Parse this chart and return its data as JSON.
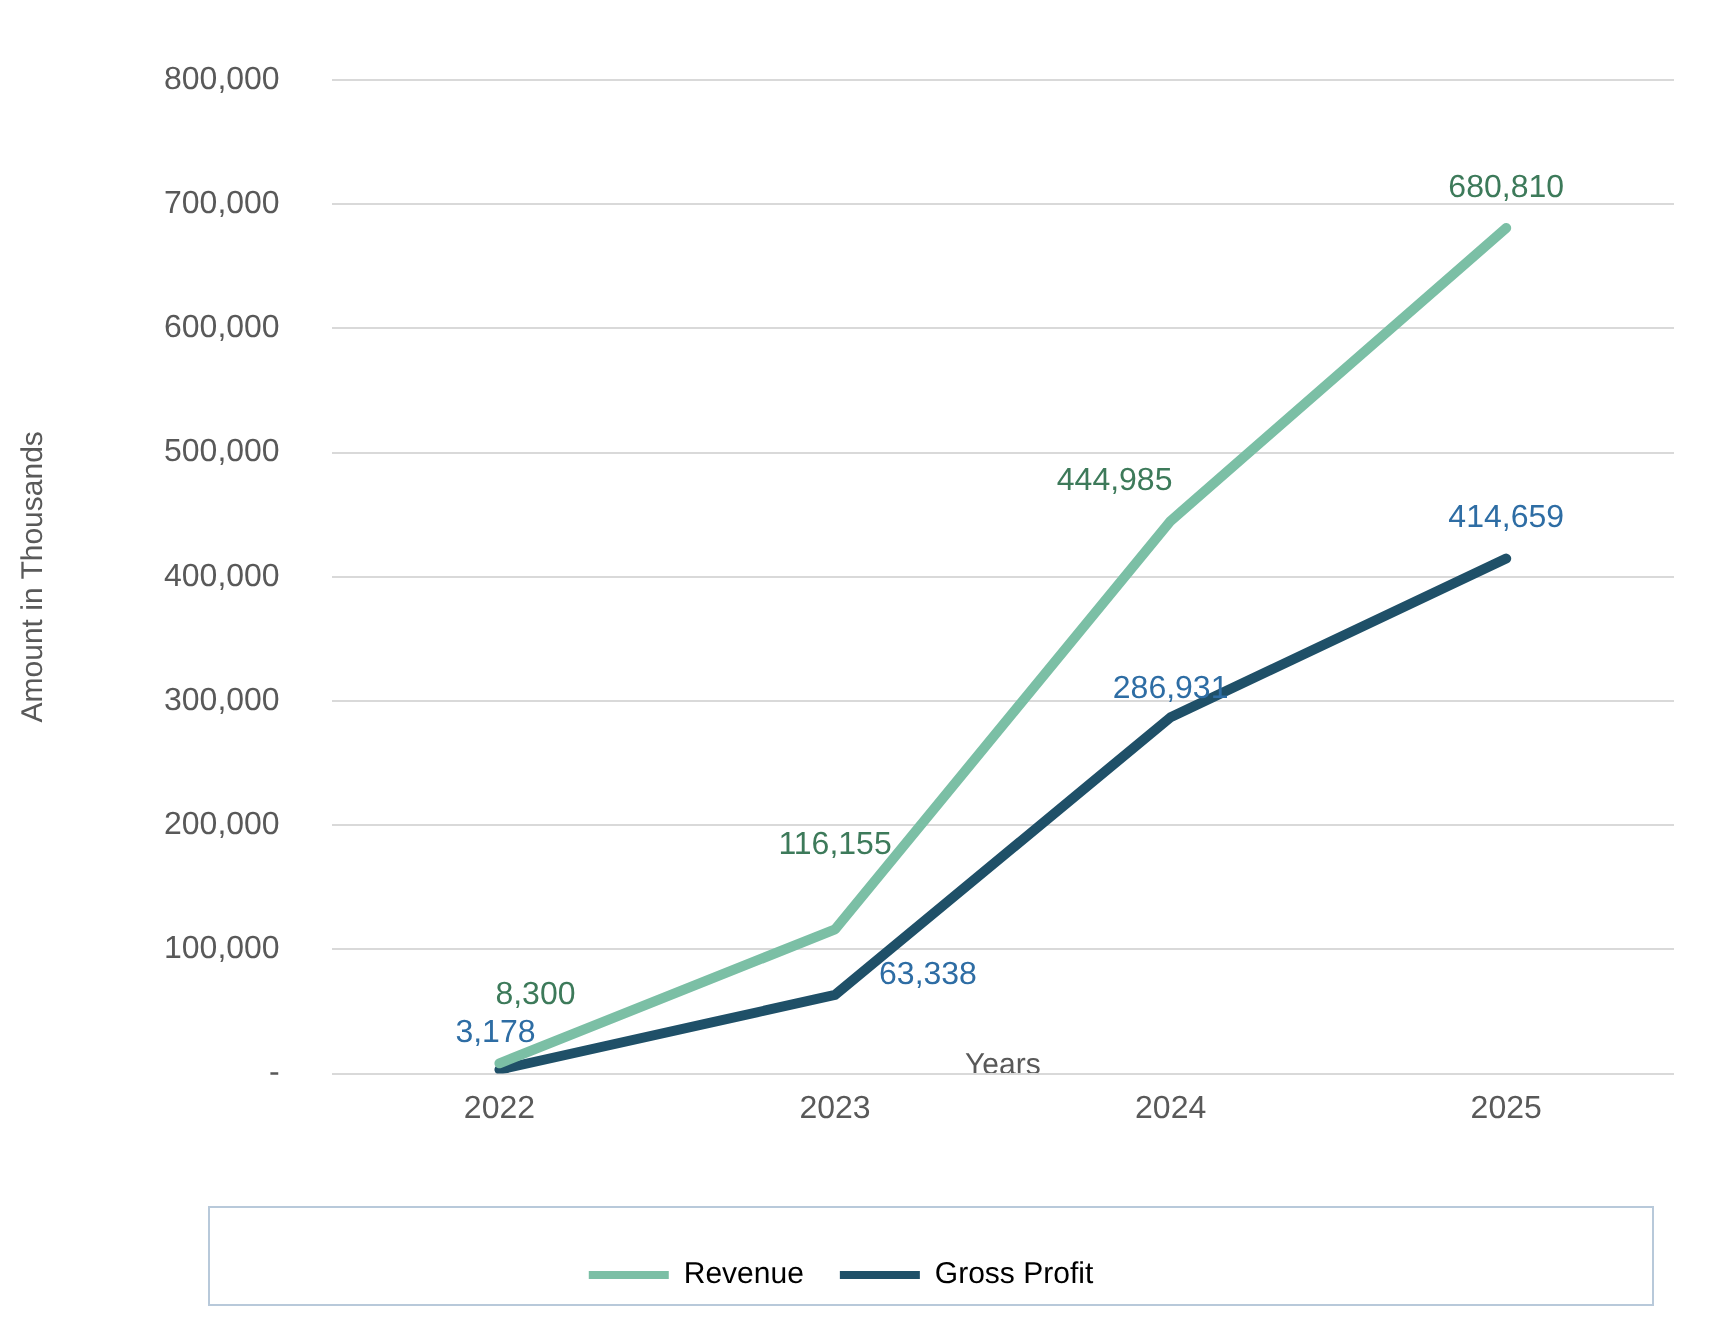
{
  "chart_data": {
    "type": "line",
    "xlabel": "Years",
    "ylabel": "Amount in Thousands",
    "categories": [
      "2022",
      "2023",
      "2024",
      "2025"
    ],
    "series": [
      {
        "name": "Revenue",
        "color": "#7bbfa5",
        "values": [
          8300,
          116155,
          444985,
          680810
        ],
        "value_labels": [
          "8,300",
          "116,155",
          "444,985",
          "680,810"
        ]
      },
      {
        "name": "Gross Profit",
        "color": "#1f5068",
        "values": [
          3178,
          63338,
          286931,
          414659
        ],
        "value_labels": [
          "3,178",
          "63,338",
          "286,931",
          "414,659"
        ]
      }
    ],
    "ylim": [
      0,
      800000
    ],
    "yticks": [
      {
        "value": 0,
        "label": "-"
      },
      {
        "value": 100000,
        "label": "100,000"
      },
      {
        "value": 200000,
        "label": "200,000"
      },
      {
        "value": 300000,
        "label": "300,000"
      },
      {
        "value": 400000,
        "label": "400,000"
      },
      {
        "value": 500000,
        "label": "500,000"
      },
      {
        "value": 600000,
        "label": "600,000"
      },
      {
        "value": 700000,
        "label": "700,000"
      },
      {
        "value": 800000,
        "label": "800,000"
      }
    ],
    "grid": "y",
    "legend": "bottom",
    "marker": "none",
    "line_style": "solid"
  }
}
